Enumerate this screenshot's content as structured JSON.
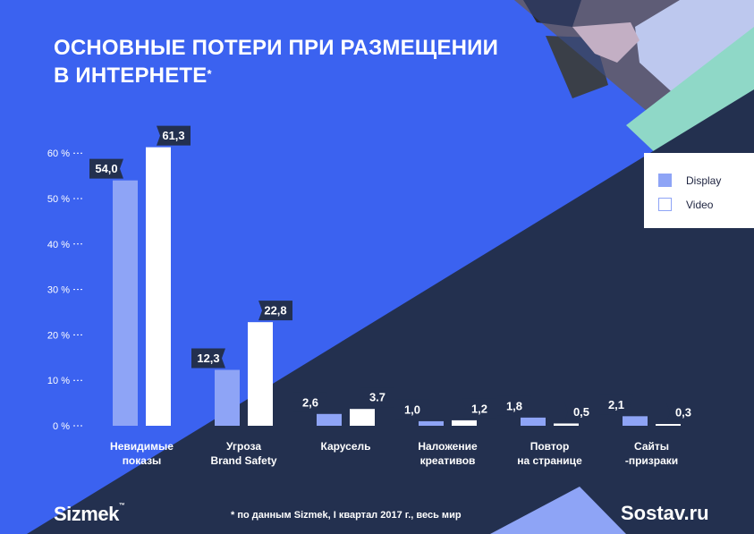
{
  "title": {
    "line1": "ОСНОВНЫЕ ПОТЕРИ ПРИ РАЗМЕЩЕНИИ",
    "line2": "В ИНТЕРНЕТЕ",
    "footnote_mark": "*"
  },
  "footer": {
    "logo_left": "Sizmek",
    "logo_tm": "™",
    "note": "* по данным Sizmek, I квартал 2017 г., весь мир",
    "logo_right": "Sostav.ru"
  },
  "colors": {
    "background": "#3b62f0",
    "dark": "#23304f",
    "teal": "#8fd8c7",
    "display": "#8ea4f6",
    "video": "#ffffff",
    "label_box": "#23304f"
  },
  "chart_data": {
    "type": "bar",
    "title": "ОСНОВНЫЕ ПОТЕРИ ПРИ РАЗМЕЩЕНИИ В ИНТЕРНЕТЕ*",
    "categories": [
      [
        "Невидимые",
        "показы"
      ],
      [
        "Угроза",
        "Brand Safety"
      ],
      [
        "Карусель"
      ],
      [
        "Наложение",
        "креативов"
      ],
      [
        "Повтор",
        "на странице"
      ],
      [
        "Сайты",
        "-призраки"
      ]
    ],
    "series": [
      {
        "name": "Display",
        "values": [
          54.0,
          12.3,
          2.6,
          1.0,
          1.8,
          2.1
        ],
        "labels": [
          "54,0",
          "12,3",
          "2,6",
          "1,0",
          "1,8",
          "2,1"
        ]
      },
      {
        "name": "Video",
        "values": [
          61.3,
          22.8,
          3.7,
          1.2,
          0.5,
          0.3
        ],
        "labels": [
          "61,3",
          "22,8",
          "3.7",
          "1,2",
          "0,5",
          "0,3"
        ]
      }
    ],
    "yticks": [
      "0 %",
      "10 %",
      "20 %",
      "30 %",
      "40 %",
      "50 %",
      "60 %"
    ],
    "ylim": [
      0,
      60
    ],
    "grid": false,
    "legend": "right"
  }
}
